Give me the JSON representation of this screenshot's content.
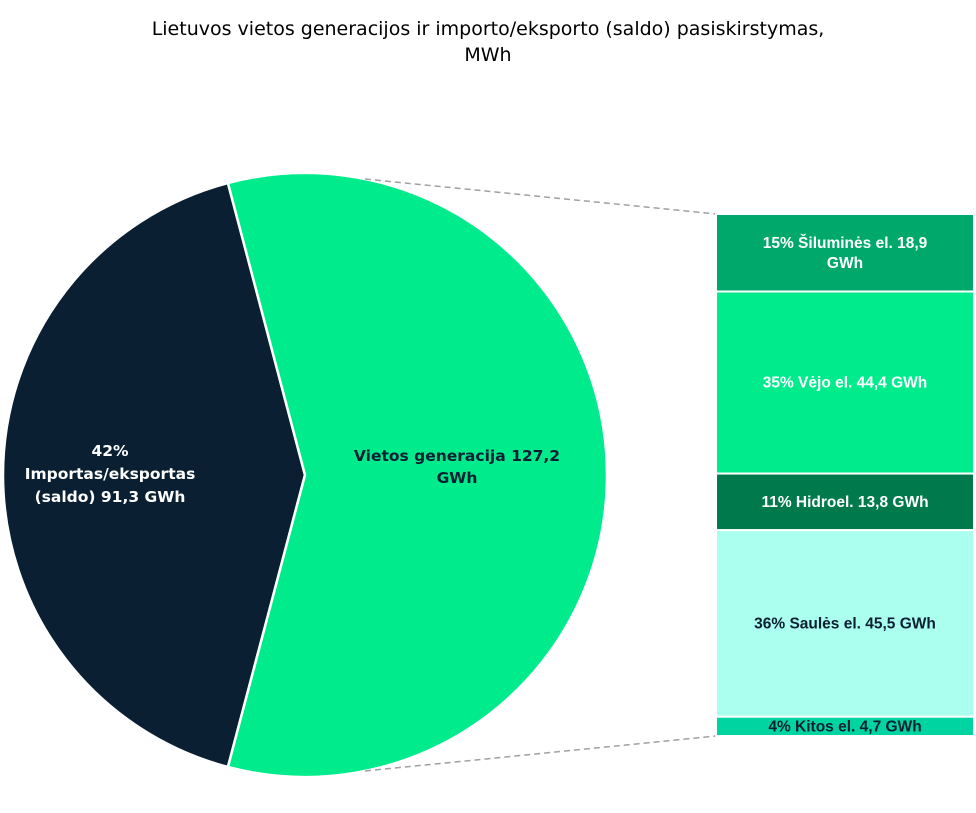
{
  "chart_data": {
    "type": "pie",
    "title_lines": [
      "Lietuvos vietos generacijos ir importo/eksporto (saldo) pasiskirstymas,",
      "MWh"
    ],
    "slices": [
      {
        "label_lines": [
          "42%",
          "Importas/eksportas",
          "(saldo)  91,3 GWh"
        ],
        "percent": 42,
        "value": 91.3,
        "color": "#0b1f33"
      },
      {
        "label_lines": [
          "Vietos generacija   127,2",
          "GWh"
        ],
        "value": 127.2,
        "color": "#00eb8c"
      }
    ],
    "breakdown_of": "Vietos generacija",
    "breakdown": [
      {
        "label": "15% Šiluminės el.  18,9 GWh",
        "label_lines": [
          "15% Šiluminės el.  18,9",
          "GWh"
        ],
        "percent": 15,
        "value": 18.9,
        "color": "#00a86b",
        "text_color": "#ffffff"
      },
      {
        "label": "35% Vėjo el.  44,4 GWh",
        "label_lines": [
          "35% Vėjo el.  44,4 GWh"
        ],
        "percent": 35,
        "value": 44.4,
        "color": "#00eb8c",
        "text_color": "#ffffff"
      },
      {
        "label": "11% Hidroel.  13,8 GWh",
        "label_lines": [
          "11% Hidroel.  13,8 GWh"
        ],
        "percent": 11,
        "value": 13.8,
        "color": "#007a4d",
        "text_color": "#ffffff"
      },
      {
        "label": "36% Saulės el.  45,5 GWh",
        "label_lines": [
          "36% Saulės el.  45,5 GWh"
        ],
        "percent": 36,
        "value": 45.5,
        "color": "#aaffee",
        "text_color": "#0b1f33"
      },
      {
        "label": "4% Kitos el.  4,7 GWh",
        "label_lines": [
          "4% Kitos el.  4,7 GWh"
        ],
        "percent": 4,
        "value": 4.7,
        "color": "#00d4a0",
        "text_color": "#0b1f33"
      }
    ]
  }
}
